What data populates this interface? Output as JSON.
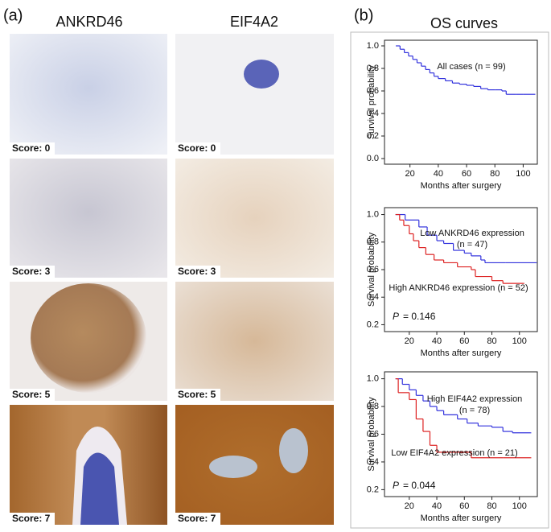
{
  "panel_a": {
    "label": "(a)",
    "columns": [
      "ANKRD46",
      "EIF4A2"
    ],
    "rows": [
      [
        "Score: 0",
        "Score: 0"
      ],
      [
        "Score: 3",
        "Score: 3"
      ],
      [
        "Score: 5",
        "Score: 5"
      ],
      [
        "Score: 7",
        "Score: 7"
      ]
    ]
  },
  "panel_b": {
    "label": "(b)",
    "title": "OS curves"
  },
  "chart_data": [
    {
      "type": "step",
      "xlabel": "Months after surgery",
      "ylabel": "Survival probability",
      "xlim": [
        2,
        110
      ],
      "ylim": [
        -0.05,
        1.05
      ],
      "xticks": [
        20,
        40,
        60,
        80,
        100
      ],
      "yticks": [
        {
          "value": 0,
          "label": "0.0"
        },
        0.2,
        0.4,
        0.6,
        0.8,
        {
          "value": 1,
          "label": "1.0"
        }
      ],
      "series": [
        {
          "name": "All cases (n = 99)",
          "color": "#3333dd",
          "x": [
            10,
            13,
            16,
            19,
            22,
            25,
            28,
            31,
            34,
            37,
            40,
            45,
            50,
            55,
            60,
            65,
            70,
            75,
            80,
            85,
            88,
            95,
            100,
            108
          ],
          "values": [
            1.0,
            0.97,
            0.94,
            0.91,
            0.88,
            0.85,
            0.82,
            0.79,
            0.76,
            0.73,
            0.71,
            0.69,
            0.67,
            0.66,
            0.65,
            0.64,
            0.62,
            0.61,
            0.61,
            0.6,
            0.57,
            0.57,
            0.57,
            0.57
          ]
        }
      ]
    },
    {
      "type": "step",
      "xlabel": "Months after surgery",
      "ylabel": "Survival probability",
      "xlim": [
        2,
        113
      ],
      "ylim": [
        0.15,
        1.05
      ],
      "xticks": [
        20,
        40,
        60,
        80,
        100
      ],
      "yticks": [
        0.2,
        0.4,
        0.6,
        0.8,
        {
          "value": 1,
          "label": "1.0"
        }
      ],
      "p_symbol": "P",
      "p_value": "= 0.146",
      "series": [
        {
          "name": "Low ANKRD46 expression",
          "note": "(n = 47)",
          "color": "#3333dd",
          "x": [
            10,
            17,
            27,
            33,
            40,
            45,
            52,
            60,
            65,
            72,
            75,
            90,
            112
          ],
          "values": [
            1.0,
            0.96,
            0.91,
            0.85,
            0.81,
            0.79,
            0.74,
            0.72,
            0.7,
            0.67,
            0.65,
            0.65,
            0.65
          ]
        },
        {
          "name": "High ANKRD46 expression (n = 52)",
          "color": "#dd2222",
          "x": [
            10,
            13,
            16,
            20,
            23,
            27,
            32,
            38,
            45,
            55,
            65,
            68,
            80,
            88,
            103
          ],
          "values": [
            1.0,
            0.96,
            0.92,
            0.86,
            0.81,
            0.76,
            0.71,
            0.67,
            0.65,
            0.62,
            0.6,
            0.55,
            0.52,
            0.5,
            0.5
          ]
        }
      ]
    },
    {
      "type": "step",
      "xlabel": "Months after surgery",
      "ylabel": "Survival probability",
      "xlim": [
        2,
        113
      ],
      "ylim": [
        0.15,
        1.05
      ],
      "xticks": [
        20,
        40,
        60,
        80,
        100
      ],
      "yticks": [
        0.2,
        0.4,
        0.6,
        0.8,
        {
          "value": 1,
          "label": "1.0"
        }
      ],
      "p_symbol": "P",
      "p_value": "= 0.044",
      "series": [
        {
          "name": "High EIF4A2 expression",
          "note": "(n = 78)",
          "color": "#3333dd",
          "x": [
            10,
            15,
            20,
            25,
            30,
            35,
            40,
            45,
            55,
            62,
            70,
            80,
            88,
            95,
            108
          ],
          "values": [
            1.0,
            0.96,
            0.92,
            0.88,
            0.84,
            0.8,
            0.77,
            0.74,
            0.71,
            0.68,
            0.66,
            0.65,
            0.62,
            0.61,
            0.61
          ]
        },
        {
          "name": "Low EIF4A2 expression (n = 21)",
          "color": "#dd2222",
          "x": [
            10,
            12,
            20,
            25,
            30,
            35,
            40,
            65,
            88,
            108
          ],
          "values": [
            1.0,
            0.9,
            0.85,
            0.71,
            0.62,
            0.52,
            0.47,
            0.43,
            0.43,
            0.43
          ]
        }
      ]
    }
  ]
}
